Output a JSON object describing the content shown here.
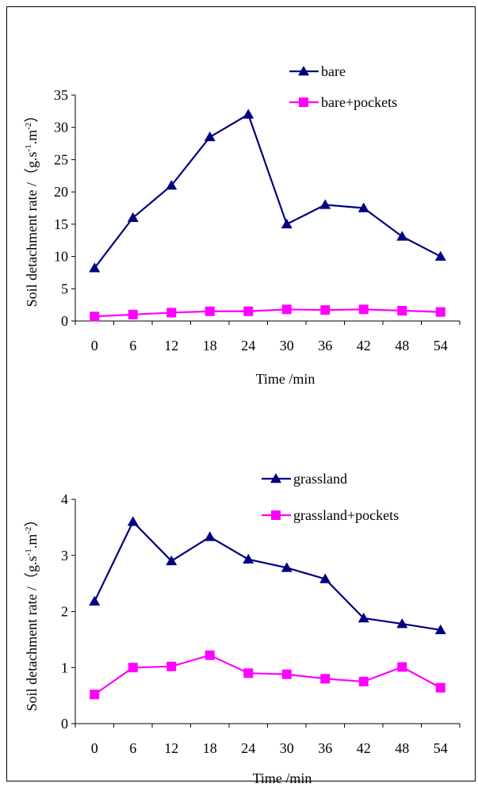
{
  "chart_data": [
    {
      "type": "line",
      "xlabel": "Time /min",
      "ylabel_main": "Soil detachment rate /（g.s",
      "ylabel_sup1": "-1",
      "ylabel_mid": ".m",
      "ylabel_sup2": "-2",
      "ylabel_end": "）",
      "categories": [
        "0",
        "6",
        "12",
        "18",
        "24",
        "30",
        "36",
        "42",
        "48",
        "54"
      ],
      "ylim": [
        0,
        35
      ],
      "yticks": [
        "0",
        "5",
        "10",
        "15",
        "20",
        "25",
        "30",
        "35"
      ],
      "legend_position": "top-right",
      "series": [
        {
          "name": "bare",
          "marker": "triangle",
          "color": "#000080",
          "values": [
            8.2,
            16.0,
            21.0,
            28.5,
            32.0,
            15.0,
            18.0,
            17.5,
            13.1,
            10.0
          ]
        },
        {
          "name": "bare+pockets",
          "marker": "square",
          "color": "#ff00ff",
          "values": [
            0.7,
            1.0,
            1.3,
            1.5,
            1.5,
            1.8,
            1.7,
            1.8,
            1.6,
            1.4
          ]
        }
      ]
    },
    {
      "type": "line",
      "xlabel": "Time /min",
      "ylabel_main": "Soil detachment rate /（g.s",
      "ylabel_sup1": "-1",
      "ylabel_mid": ".m",
      "ylabel_sup2": "-2",
      "ylabel_end": "）",
      "categories": [
        "0",
        "6",
        "12",
        "18",
        "24",
        "30",
        "36",
        "42",
        "48",
        "54"
      ],
      "ylim": [
        0,
        4
      ],
      "yticks": [
        "0",
        "1",
        "2",
        "3",
        "4"
      ],
      "legend_position": "top-right",
      "series": [
        {
          "name": "grassland",
          "marker": "triangle",
          "color": "#000080",
          "values": [
            2.18,
            3.6,
            2.9,
            3.33,
            2.93,
            2.78,
            2.58,
            1.88,
            1.78,
            1.67
          ]
        },
        {
          "name": "grassland+pockets",
          "marker": "square",
          "color": "#ff00ff",
          "values": [
            0.52,
            1.0,
            1.02,
            1.22,
            0.9,
            0.88,
            0.8,
            0.75,
            1.01,
            0.64
          ]
        }
      ]
    }
  ]
}
